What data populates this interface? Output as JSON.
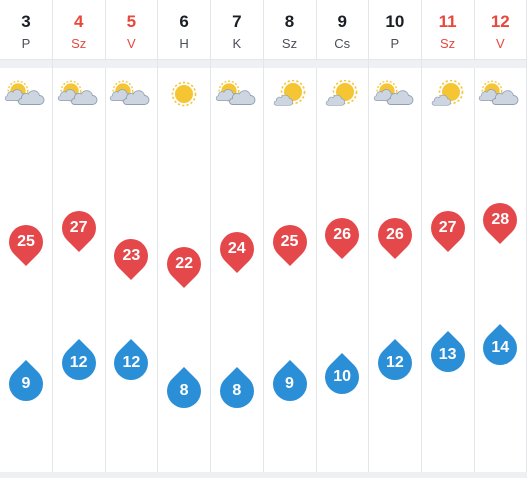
{
  "colors": {
    "high": "#e5484b",
    "low": "#2b8fd8",
    "weekend": "#e8483b"
  },
  "days": [
    {
      "num": "3",
      "abbr": "P",
      "weekend": false,
      "icon": "partly-cloudy-icon",
      "high": 25,
      "low": 9
    },
    {
      "num": "4",
      "abbr": "Sz",
      "weekend": true,
      "icon": "partly-cloudy-icon",
      "high": 27,
      "low": 12
    },
    {
      "num": "5",
      "abbr": "V",
      "weekend": true,
      "icon": "partly-cloudy-icon",
      "high": 23,
      "low": 12
    },
    {
      "num": "6",
      "abbr": "H",
      "weekend": false,
      "icon": "sunny-icon",
      "high": 22,
      "low": 8
    },
    {
      "num": "7",
      "abbr": "K",
      "weekend": false,
      "icon": "partly-cloudy-icon",
      "high": 24,
      "low": 8
    },
    {
      "num": "8",
      "abbr": "Sz",
      "weekend": false,
      "icon": "mostly-sunny-icon",
      "high": 25,
      "low": 9
    },
    {
      "num": "9",
      "abbr": "Cs",
      "weekend": false,
      "icon": "mostly-sunny-icon",
      "high": 26,
      "low": 10
    },
    {
      "num": "10",
      "abbr": "P",
      "weekend": false,
      "icon": "partly-cloudy-icon",
      "high": 26,
      "low": 12
    },
    {
      "num": "11",
      "abbr": "Sz",
      "weekend": true,
      "icon": "mostly-sunny-icon",
      "high": 27,
      "low": 13
    },
    {
      "num": "12",
      "abbr": "V",
      "weekend": true,
      "icon": "partly-cloudy-icon",
      "high": 28,
      "low": 14
    }
  ]
}
